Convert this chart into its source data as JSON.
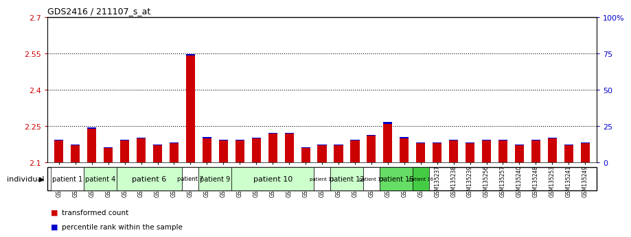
{
  "title": "GDS2416 / 211107_s_at",
  "samples": [
    "GSM135233",
    "GSM135234",
    "GSM135260",
    "GSM135232",
    "GSM135235",
    "GSM135236",
    "GSM135231",
    "GSM135242",
    "GSM135243",
    "GSM135251",
    "GSM135252",
    "GSM135244",
    "GSM135259",
    "GSM135254",
    "GSM135255",
    "GSM135261",
    "GSM135229",
    "GSM135230",
    "GSM135245",
    "GSM135246",
    "GSM135258",
    "GSM135247",
    "GSM135250",
    "GSM135237",
    "GSM135238",
    "GSM135239",
    "GSM135256",
    "GSM135257",
    "GSM135240",
    "GSM135248",
    "GSM135253",
    "GSM135241",
    "GSM135249"
  ],
  "red_values": [
    2.19,
    2.17,
    2.24,
    2.16,
    2.19,
    2.2,
    2.17,
    2.18,
    2.54,
    2.2,
    2.19,
    2.19,
    2.2,
    2.22,
    2.22,
    2.16,
    2.17,
    2.17,
    2.19,
    2.21,
    2.26,
    2.2,
    2.18,
    2.18,
    2.19,
    2.18,
    2.19,
    2.19,
    2.17,
    2.19,
    2.2,
    2.17,
    2.18
  ],
  "blue_values": [
    0.004,
    0.003,
    0.004,
    0.003,
    0.003,
    0.003,
    0.003,
    0.003,
    0.008,
    0.004,
    0.004,
    0.004,
    0.003,
    0.003,
    0.003,
    0.003,
    0.003,
    0.003,
    0.003,
    0.003,
    0.006,
    0.004,
    0.003,
    0.003,
    0.003,
    0.003,
    0.003,
    0.003,
    0.003,
    0.003,
    0.003,
    0.003,
    0.003
  ],
  "patients": [
    {
      "label": "patient 1",
      "start": 0,
      "end": 2,
      "color": "#ffffff",
      "fontsize": 7
    },
    {
      "label": "patient 4",
      "start": 2,
      "end": 4,
      "color": "#ccffcc",
      "fontsize": 7
    },
    {
      "label": "patient 6",
      "start": 4,
      "end": 8,
      "color": "#ccffcc",
      "fontsize": 8
    },
    {
      "label": "patient 7",
      "start": 8,
      "end": 9,
      "color": "#ffffff",
      "fontsize": 6
    },
    {
      "label": "patient 9",
      "start": 9,
      "end": 11,
      "color": "#ccffcc",
      "fontsize": 7
    },
    {
      "label": "patient 10",
      "start": 11,
      "end": 16,
      "color": "#ccffcc",
      "fontsize": 8
    },
    {
      "label": "patient 11",
      "start": 16,
      "end": 17,
      "color": "#ffffff",
      "fontsize": 5
    },
    {
      "label": "patient 12",
      "start": 17,
      "end": 19,
      "color": "#ccffcc",
      "fontsize": 7
    },
    {
      "label": "patient 13",
      "start": 19,
      "end": 20,
      "color": "#ffffff",
      "fontsize": 5
    },
    {
      "label": "patient 15",
      "start": 20,
      "end": 22,
      "color": "#66dd66",
      "fontsize": 7
    },
    {
      "label": "patient 16",
      "start": 22,
      "end": 23,
      "color": "#44cc44",
      "fontsize": 5
    }
  ],
  "ylim_left": [
    2.1,
    2.7
  ],
  "ylim_right": [
    0,
    100
  ],
  "yticks_left": [
    2.1,
    2.25,
    2.4,
    2.55,
    2.7
  ],
  "yticks_right": [
    0,
    25,
    50,
    75,
    100
  ],
  "ytick_labels_left": [
    "2.1",
    "2.25",
    "2.4",
    "2.55",
    "2.7"
  ],
  "ytick_labels_right": [
    "0",
    "25",
    "50",
    "75",
    "100%"
  ],
  "hlines": [
    2.25,
    2.4,
    2.55
  ],
  "bar_width": 0.55,
  "red_color": "#cc0000",
  "blue_color": "#0000cc",
  "bg_color": "#ffffff",
  "plot_bg": "#ffffff",
  "left_label_color": "#cc0000",
  "right_label_color": "#0000cc",
  "xlabel_bottom": "individual",
  "legend_red": "transformed count",
  "legend_blue": "percentile rank within the sample"
}
